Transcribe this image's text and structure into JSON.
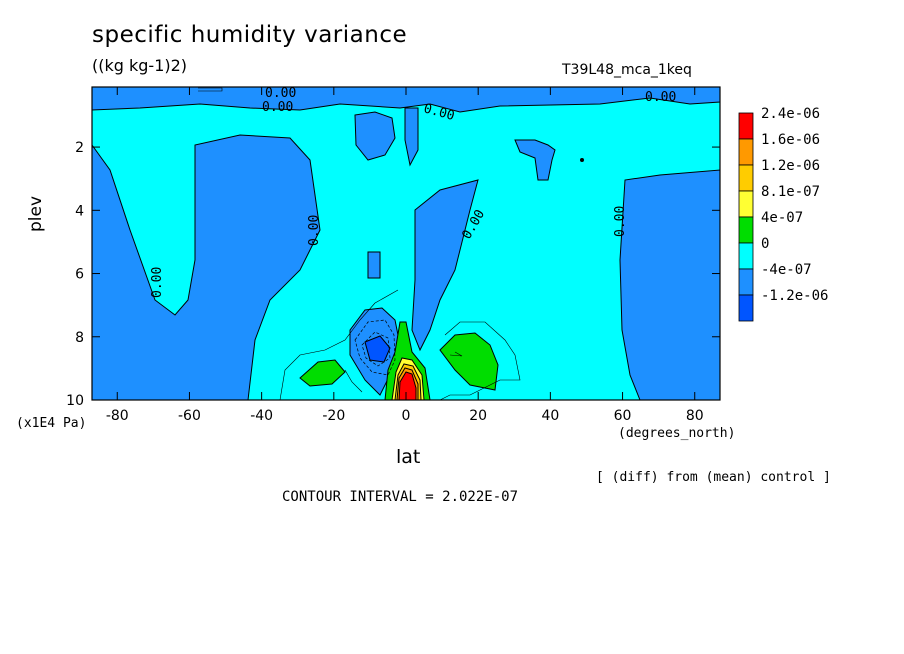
{
  "chart_data": {
    "type": "contour",
    "title": "specific humidity variance",
    "units": "((kg kg-1)2)",
    "run_id": "T39L48_mca_1keq",
    "xlabel": "lat",
    "x_units": "(degrees_north)",
    "ylabel": "plev",
    "y_units": "(x1E4 Pa)",
    "x_ticks": [
      -80,
      -60,
      -40,
      -20,
      0,
      20,
      40,
      60,
      80
    ],
    "y_ticks": [
      2,
      4,
      6,
      8,
      10
    ],
    "xlim": [
      -87,
      87
    ],
    "ylim": [
      10,
      0.1
    ],
    "note": "[ (diff) from (mean) control ]",
    "contour_interval": "CONTOUR INTERVAL = 2.022E-07",
    "contour_label": "0.00",
    "colorbar": [
      {
        "label": "2.4e-06",
        "color": "#ff0000"
      },
      {
        "label": "1.6e-06",
        "color": "#ff9900"
      },
      {
        "label": "1.2e-06",
        "color": "#ffcc00"
      },
      {
        "label": "8.1e-07",
        "color": "#ffff33"
      },
      {
        "label": "4e-07",
        "color": "#00dd00"
      },
      {
        "label": "0",
        "color": "#00ffff"
      },
      {
        "label": "-4e-07",
        "color": "#1e90ff"
      },
      {
        "label": "-1.2e-06",
        "color": "#0055ff"
      }
    ]
  }
}
